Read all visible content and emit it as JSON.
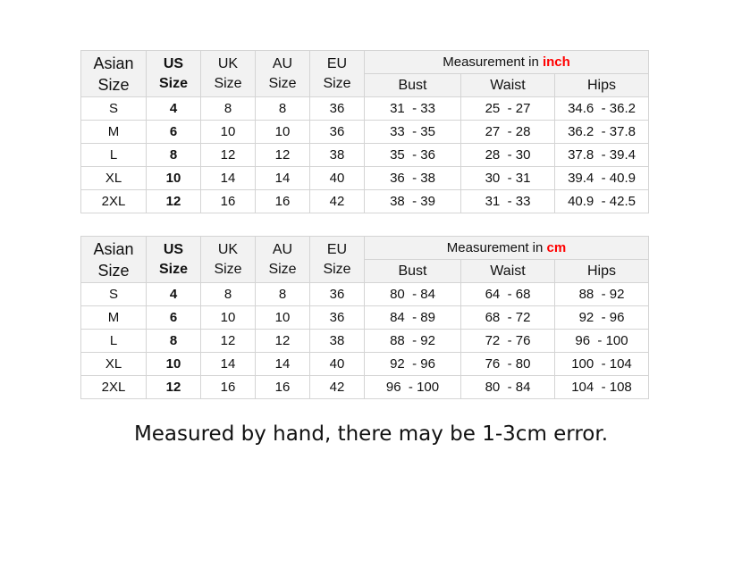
{
  "tables": [
    {
      "headers": {
        "asian": "Asian Size",
        "us": "US Size",
        "uk": "UK Size",
        "au": "AU Size",
        "eu": "EU Size"
      },
      "measurement_prefix": "Measurement in ",
      "unit": "inch",
      "subheaders": [
        "Bust",
        "Waist",
        "Hips"
      ],
      "rows": [
        [
          "S",
          "4",
          "8",
          "8",
          "36",
          "31  - 33",
          "25  - 27",
          "34.6  - 36.2"
        ],
        [
          "M",
          "6",
          "10",
          "10",
          "36",
          "33  - 35",
          "27  - 28",
          "36.2  - 37.8"
        ],
        [
          "L",
          "8",
          "12",
          "12",
          "38",
          "35  - 36",
          "28  - 30",
          "37.8  - 39.4"
        ],
        [
          "XL",
          "10",
          "14",
          "14",
          "40",
          "36  - 38",
          "30  - 31",
          "39.4  - 40.9"
        ],
        [
          "2XL",
          "12",
          "16",
          "16",
          "42",
          "38  - 39",
          "31  - 33",
          "40.9  - 42.5"
        ]
      ]
    },
    {
      "headers": {
        "asian": "Asian Size",
        "us": "US Size",
        "uk": "UK Size",
        "au": "AU Size",
        "eu": "EU Size"
      },
      "measurement_prefix": "Measurement in ",
      "unit": "cm",
      "subheaders": [
        "Bust",
        "Waist",
        "Hips"
      ],
      "rows": [
        [
          "S",
          "4",
          "8",
          "8",
          "36",
          "80  - 84",
          "64  - 68",
          "88  - 92"
        ],
        [
          "M",
          "6",
          "10",
          "10",
          "36",
          "84  - 89",
          "68  - 72",
          "92  - 96"
        ],
        [
          "L",
          "8",
          "12",
          "12",
          "38",
          "88  - 92",
          "72  - 76",
          "96  - 100"
        ],
        [
          "XL",
          "10",
          "14",
          "14",
          "40",
          "92  - 96",
          "76  - 80",
          "100  - 104"
        ],
        [
          "2XL",
          "12",
          "16",
          "16",
          "42",
          "96  - 100",
          "80  - 84",
          "104  - 108"
        ]
      ]
    }
  ],
  "caption": "Measured by hand, there may be 1-3cm error.",
  "colors": {
    "unit_highlight": "#ff0000",
    "header_bg": "#f2f2f2",
    "border": "#d4d4d4"
  }
}
